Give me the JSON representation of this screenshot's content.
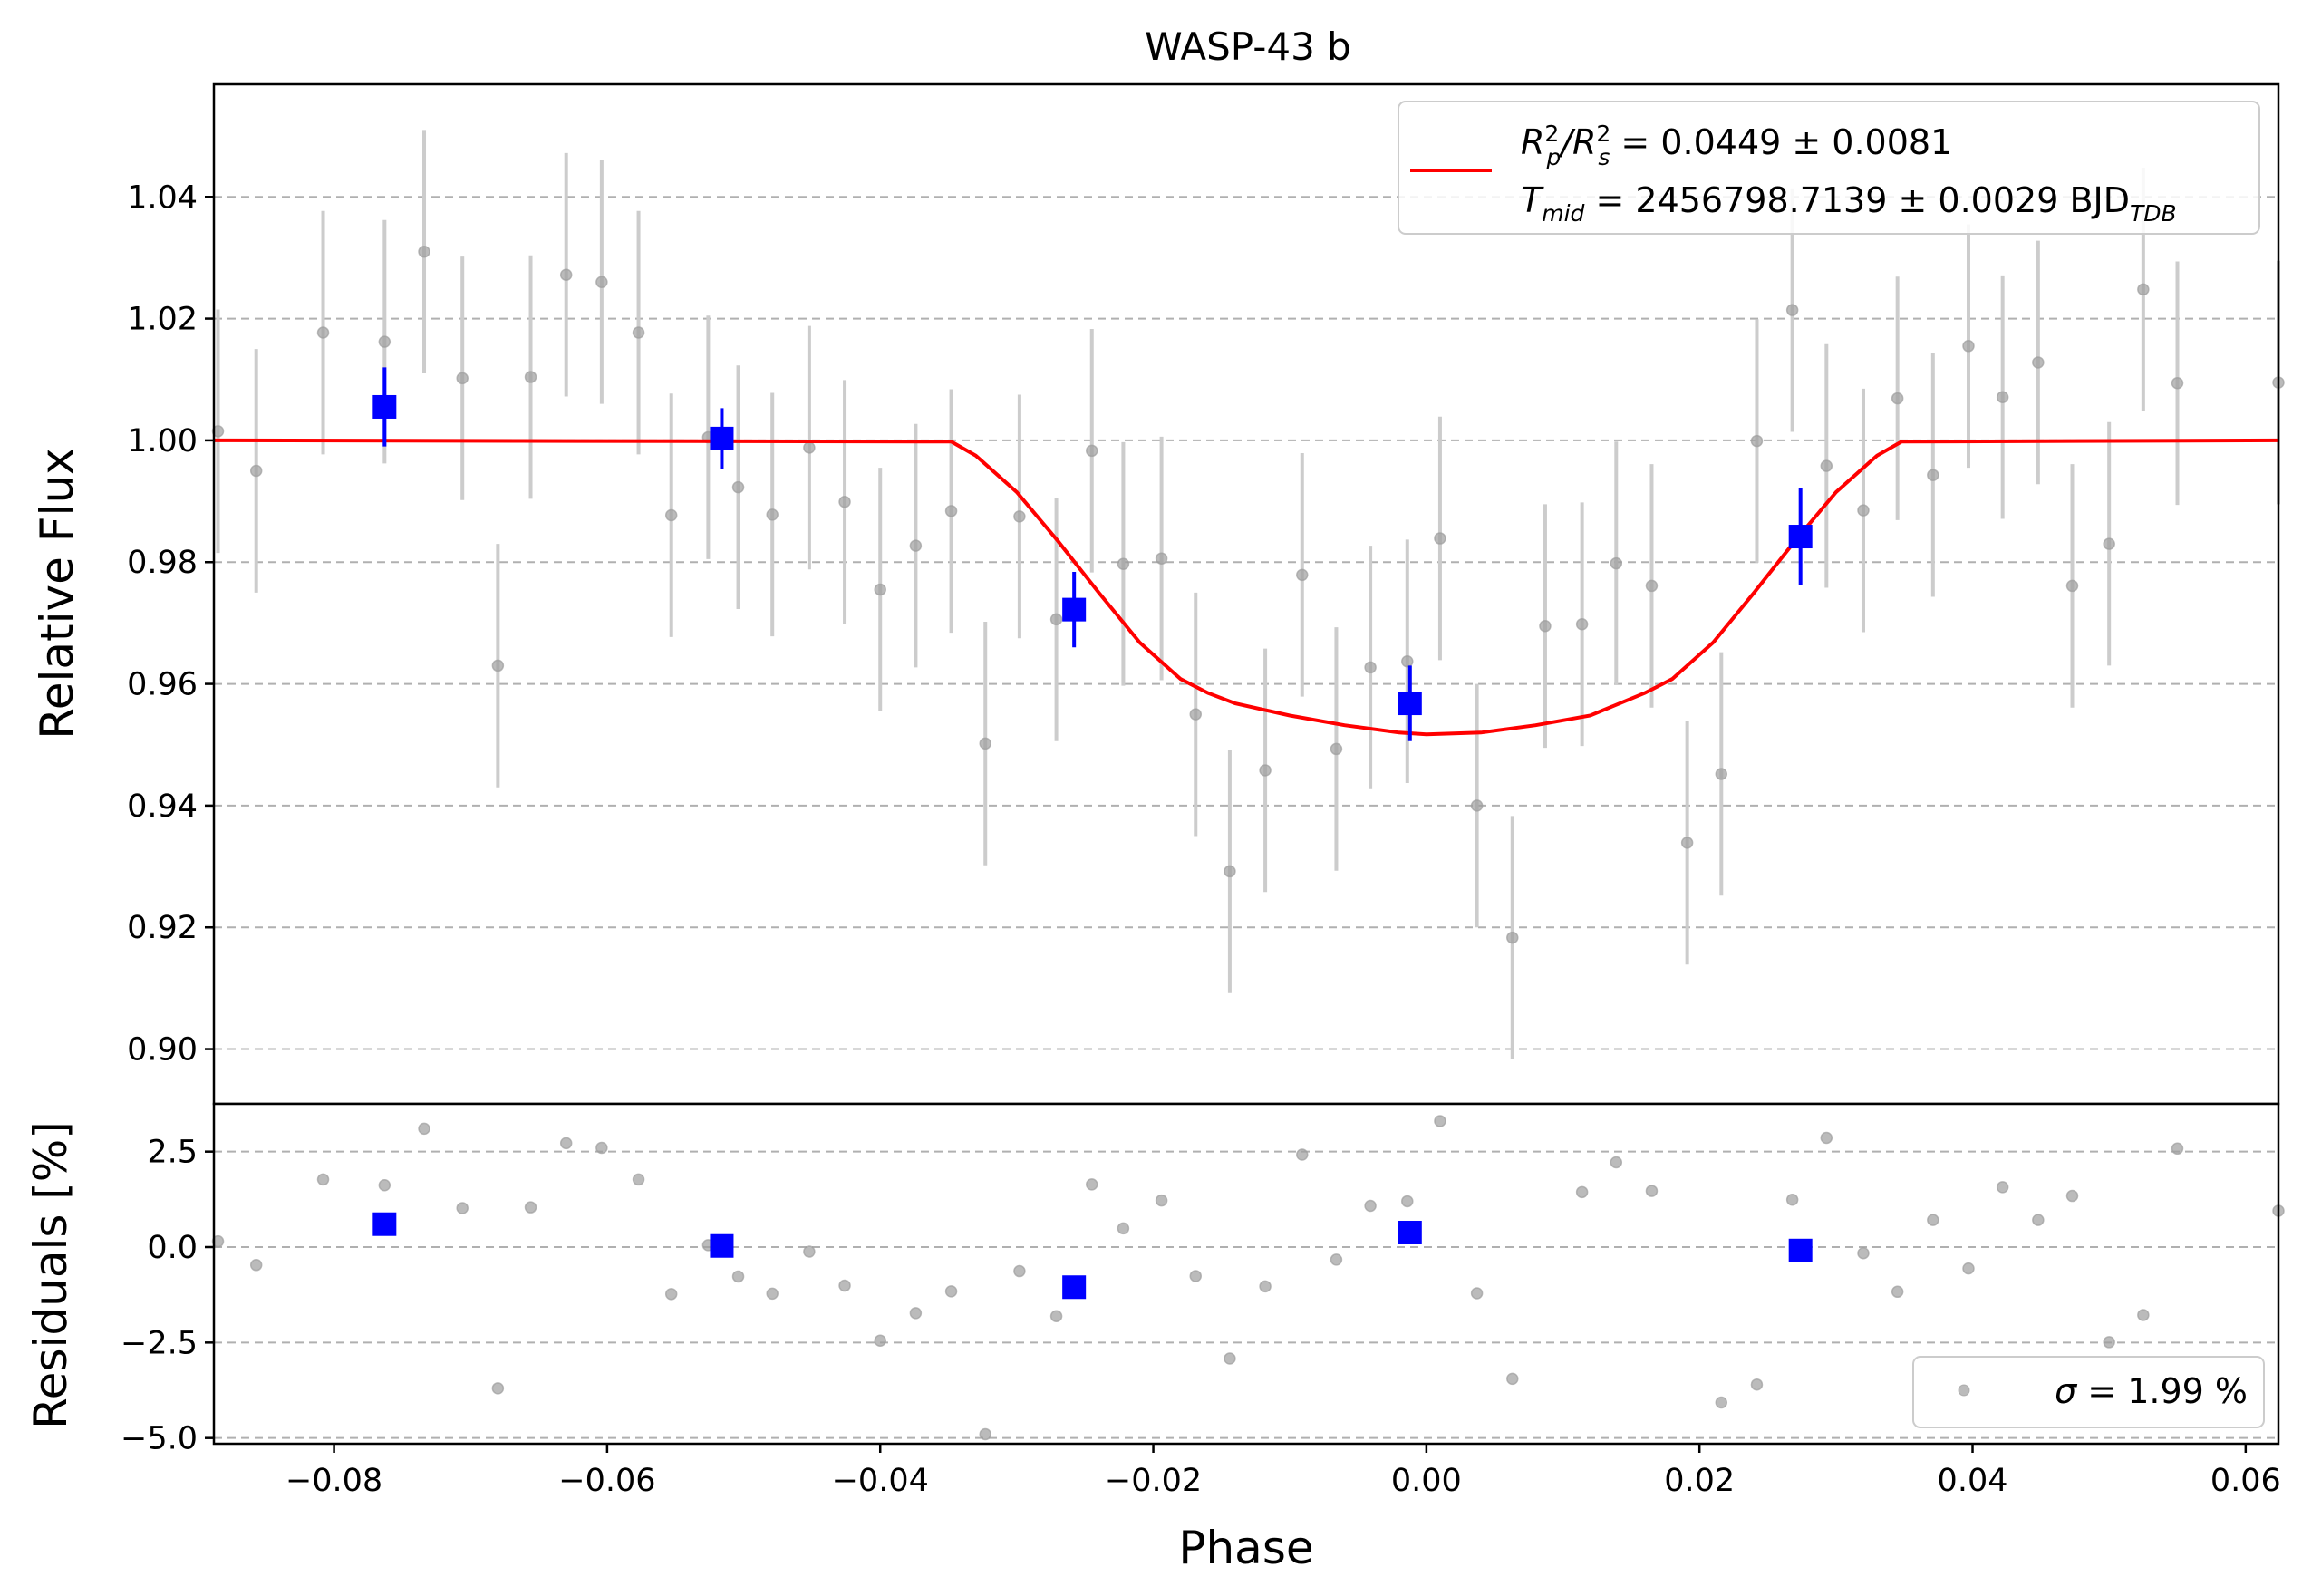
{
  "chart_data": [
    {
      "panel": "main",
      "type": "scatter",
      "title": "WASP-43 b",
      "xlabel": "Phase",
      "ylabel": "Relative Flux",
      "xlim": [
        -0.0888,
        0.0624
      ],
      "ylim": [
        0.891,
        1.0585
      ],
      "grid": "y dashed",
      "xticks": [
        -0.08,
        -0.06,
        -0.04,
        -0.02,
        0.0,
        0.02,
        0.04,
        0.06
      ],
      "xtick_labels": [
        "−0.08",
        "−0.06",
        "−0.04",
        "−0.02",
        "0.00",
        "0.02",
        "0.04",
        "0.06"
      ],
      "yticks": [
        0.9,
        0.92,
        0.94,
        0.96,
        0.98,
        1.0,
        1.02,
        1.04
      ],
      "ytick_labels": [
        "0.90",
        "0.92",
        "0.94",
        "0.96",
        "0.98",
        "1.00",
        "1.02",
        "1.04"
      ],
      "legend_position": "upper-right",
      "legend": {
        "model_line1_main": "R",
        "model_line1_sup1": "2",
        "model_line1_sub1": "p",
        "model_line1_mid": "/R",
        "model_line1_sup2": "2",
        "model_line1_sub2": "s",
        "model_line1_value": " = 0.0449 ± 0.0081",
        "model_line2_main": "T",
        "model_line2_sub": "mid",
        "model_line2_value": " = 2456798.7139 ± 0.0029 BJD",
        "model_line2_unit_sub": "TDB"
      },
      "data_points": {
        "color": "#9e9e9e",
        "errorbar_color": "#cccccc",
        "yerr": 0.02,
        "x": [
          -0.0885,
          -0.0857,
          -0.0808,
          -0.0763,
          -0.0734,
          -0.0706,
          -0.068,
          -0.0656,
          -0.063,
          -0.0604,
          -0.0577,
          -0.0553,
          -0.0526,
          -0.0504,
          -0.0479,
          -0.0452,
          -0.0426,
          -0.04,
          -0.0374,
          -0.0348,
          -0.0323,
          -0.0298,
          -0.0271,
          -0.0245,
          -0.0222,
          -0.0194,
          -0.0169,
          -0.0144,
          -0.0118,
          -0.0091,
          -0.0066,
          -0.0041,
          -0.0014,
          0.001,
          0.0037,
          0.0063,
          0.0087,
          0.0114,
          0.0139,
          0.0165,
          0.0191,
          0.0216,
          0.0242,
          0.0268,
          0.0293,
          0.032,
          0.0345,
          0.0371,
          0.0397,
          0.0422,
          0.0448,
          0.0473,
          0.05,
          0.0525,
          0.055,
          0.0624
        ],
        "y": [
          1.0015,
          0.995,
          1.0177,
          1.0162,
          1.031,
          1.0102,
          0.963,
          1.0104,
          1.0272,
          1.026,
          1.0177,
          0.9877,
          1.0005,
          0.9923,
          0.9878,
          0.9988,
          0.9899,
          0.9755,
          0.9827,
          0.9884,
          0.9502,
          0.9875,
          0.9706,
          0.9983,
          0.9797,
          0.9806,
          0.955,
          0.9292,
          0.9458,
          0.9779,
          0.9493,
          0.9627,
          0.9637,
          0.9839,
          0.94,
          0.9183,
          0.9695,
          0.9698,
          0.9798,
          0.9761,
          0.9339,
          0.9452,
          0.9999,
          1.0214,
          0.9958,
          0.9885,
          1.0069,
          0.9943,
          1.0155,
          1.0071,
          1.0128,
          0.9761,
          0.983,
          1.0248,
          1.0094,
          1.0095
        ]
      },
      "binned_points": {
        "color": "#0000ff",
        "x": [
          -0.0763,
          -0.0516,
          -0.0258,
          -0.0012,
          0.0274
        ],
        "y": [
          1.0055,
          1.0003,
          0.9722,
          0.9568,
          0.9842
        ],
        "yerr": [
          0.0065,
          0.005,
          0.0062,
          0.0062,
          0.008
        ]
      },
      "model": {
        "color": "#ff0000",
        "x": [
          -0.0888,
          -0.0348,
          -0.033,
          -0.03,
          -0.027,
          -0.024,
          -0.021,
          -0.018,
          -0.016,
          -0.014,
          -0.01,
          -0.006,
          -0.002,
          0.0,
          0.004,
          0.008,
          0.012,
          0.016,
          0.018,
          0.021,
          0.024,
          0.027,
          0.03,
          0.033,
          0.0348,
          0.0624
        ],
        "y": [
          1.0,
          0.9998,
          0.9975,
          0.9915,
          0.9835,
          0.975,
          0.9668,
          0.9608,
          0.9585,
          0.9568,
          0.9548,
          0.9532,
          0.952,
          0.9517,
          0.952,
          0.9532,
          0.9548,
          0.9585,
          0.9608,
          0.9668,
          0.975,
          0.9835,
          0.9915,
          0.9975,
          0.9998,
          1.0
        ]
      }
    },
    {
      "panel": "residuals",
      "type": "scatter",
      "xlabel": "",
      "ylabel": "Residuals [%]",
      "xlim": [
        -0.0888,
        0.0624
      ],
      "ylim": [
        -5.15,
        3.75
      ],
      "grid": "y dashed",
      "yticks": [
        -5.0,
        -2.5,
        0.0,
        2.5
      ],
      "ytick_labels": [
        "−5.0",
        "−2.5",
        "0.0",
        "2.5"
      ],
      "legend_position": "lower-right",
      "legend": {
        "sigma_symbol": "σ",
        "sigma_value": " = 1.99 %"
      },
      "residual_points": {
        "color": "#9e9e9e",
        "x": [
          -0.0885,
          -0.0857,
          -0.0808,
          -0.0763,
          -0.0734,
          -0.0706,
          -0.068,
          -0.0656,
          -0.063,
          -0.0604,
          -0.0577,
          -0.0553,
          -0.0526,
          -0.0504,
          -0.0479,
          -0.0452,
          -0.0426,
          -0.04,
          -0.0374,
          -0.0348,
          -0.0323,
          -0.0298,
          -0.0271,
          -0.0245,
          -0.0222,
          -0.0194,
          -0.0169,
          -0.0144,
          -0.0118,
          -0.0091,
          -0.0066,
          -0.0041,
          -0.0014,
          0.001,
          0.0037,
          0.0063,
          0.0114,
          0.0139,
          0.0165,
          0.0216,
          0.0242,
          0.0268,
          0.0293,
          0.032,
          0.0345,
          0.0371,
          0.0397,
          0.0422,
          0.0448,
          0.0473,
          0.05,
          0.0525,
          0.055,
          0.0624
        ],
        "y": [
          0.15,
          -0.47,
          1.77,
          1.62,
          3.1,
          1.02,
          -3.7,
          1.04,
          2.72,
          2.6,
          1.77,
          -1.23,
          0.05,
          -0.77,
          -1.22,
          -0.12,
          -1.01,
          -2.45,
          -1.73,
          -1.16,
          -4.9,
          -0.63,
          -1.81,
          1.64,
          0.49,
          1.22,
          -0.76,
          -2.92,
          -1.03,
          2.42,
          -0.33,
          1.08,
          1.2,
          3.3,
          -1.21,
          -3.45,
          1.44,
          2.22,
          1.47,
          -4.07,
          -3.6,
          1.24,
          2.86,
          -0.16,
          -1.17,
          0.71,
          -0.56,
          1.57,
          0.71,
          1.34,
          -2.49,
          -1.78,
          2.58,
          0.95
        ]
      },
      "binned_points": {
        "color": "#0000ff",
        "x": [
          -0.0763,
          -0.0516,
          -0.0258,
          -0.0012,
          0.0274
        ],
        "y": [
          0.6,
          0.03,
          -1.05,
          0.38,
          -0.09
        ]
      }
    }
  ]
}
